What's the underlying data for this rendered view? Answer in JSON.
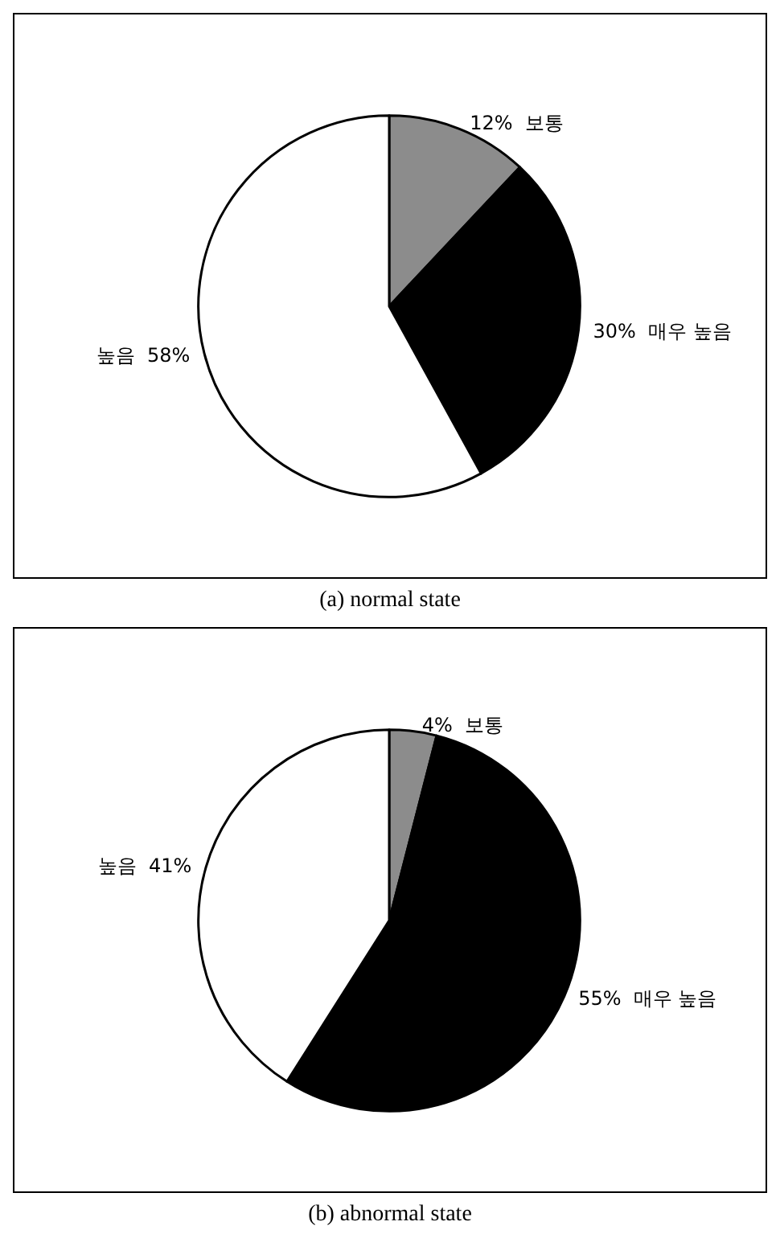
{
  "chart_data": [
    {
      "type": "pie",
      "title": "(a) normal state",
      "categories": [
        "보통",
        "매우 높음",
        "높음"
      ],
      "values": [
        12,
        30,
        58
      ],
      "value_labels": [
        "12%",
        "30%",
        "58%"
      ],
      "colors": [
        "#8c8c8c",
        "#000000",
        "#ffffff"
      ]
    },
    {
      "type": "pie",
      "title": "(b) abnormal state",
      "categories": [
        "보통",
        "매우 높음",
        "높음"
      ],
      "values": [
        4,
        55,
        41
      ],
      "value_labels": [
        "4%",
        "55%",
        "41%"
      ],
      "colors": [
        "#8c8c8c",
        "#000000",
        "#ffffff"
      ]
    }
  ]
}
